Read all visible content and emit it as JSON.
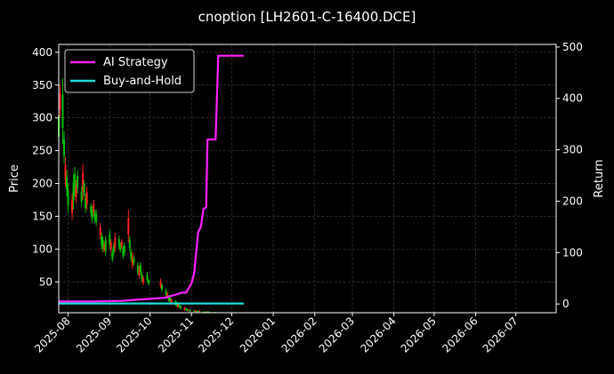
{
  "chart_data": {
    "type": "line",
    "title": "cnoption [LH2601-C-16400.DCE]",
    "ylabel_left": "Price",
    "ylabel_right": "Return",
    "x_ticks": [
      "2025-08",
      "2025-09",
      "2025-10",
      "2025-11",
      "2025-12",
      "2026-01",
      "2026-02",
      "2026-03",
      "2026-04",
      "2026-05",
      "2026-06",
      "2026-07"
    ],
    "y_left_ticks": [
      50,
      100,
      150,
      200,
      250,
      300,
      350,
      400
    ],
    "y_right_ticks": [
      0,
      100,
      200,
      300,
      400,
      500
    ],
    "y_left_lim": [
      3,
      412
    ],
    "y_right_lim": [
      -17,
      505
    ],
    "x_range": [
      "2025-07-25",
      "2026-07-31"
    ],
    "grid": true,
    "legend_position": "top-left",
    "colors": {
      "up": "#00c000",
      "down": "#ff2020",
      "strategy": "#ff22ff",
      "buyhold": "#22dddd",
      "background": "#000000",
      "text": "#ffffff",
      "grid": "#444444"
    },
    "series": [
      {
        "name": "AI Strategy",
        "axis": "right",
        "points": [
          [
            "2025-07-25",
            5
          ],
          [
            "2025-08-20",
            5
          ],
          [
            "2025-09-10",
            6
          ],
          [
            "2025-09-20",
            8
          ],
          [
            "2025-10-01",
            10
          ],
          [
            "2025-10-12",
            12
          ],
          [
            "2025-10-20",
            18
          ],
          [
            "2025-10-25",
            22
          ],
          [
            "2025-10-28",
            22
          ],
          [
            "2025-11-01",
            40
          ],
          [
            "2025-11-03",
            60
          ],
          [
            "2025-11-06",
            140
          ],
          [
            "2025-11-08",
            150
          ],
          [
            "2025-11-10",
            185
          ],
          [
            "2025-11-12",
            188
          ],
          [
            "2025-11-13",
            320
          ],
          [
            "2025-11-19",
            320
          ],
          [
            "2025-11-21",
            483
          ],
          [
            "2025-12-10",
            483
          ]
        ]
      },
      {
        "name": "Buy-and-Hold",
        "axis": "right",
        "points": [
          [
            "2025-07-25",
            1
          ],
          [
            "2025-12-10",
            1
          ]
        ]
      }
    ],
    "candles": [
      [
        "2025-07-25",
        255,
        320
      ],
      [
        "2025-07-26",
        300,
        350
      ],
      [
        "2025-07-28",
        260,
        360
      ],
      [
        "2025-07-29",
        230,
        280
      ],
      [
        "2025-07-30",
        195,
        240
      ],
      [
        "2025-07-31",
        180,
        220
      ],
      [
        "2025-08-01",
        155,
        200
      ],
      [
        "2025-08-04",
        145,
        185
      ],
      [
        "2025-08-05",
        160,
        215
      ],
      [
        "2025-08-06",
        180,
        225
      ],
      [
        "2025-08-07",
        170,
        205
      ],
      [
        "2025-08-08",
        185,
        220
      ],
      [
        "2025-08-11",
        165,
        195
      ],
      [
        "2025-08-12",
        175,
        230
      ],
      [
        "2025-08-13",
        180,
        205
      ],
      [
        "2025-08-14",
        155,
        185
      ],
      [
        "2025-08-15",
        160,
        195
      ],
      [
        "2025-08-18",
        150,
        170
      ],
      [
        "2025-08-19",
        140,
        165
      ],
      [
        "2025-08-20",
        150,
        175
      ],
      [
        "2025-08-21",
        140,
        160
      ],
      [
        "2025-08-22",
        135,
        160
      ],
      [
        "2025-08-25",
        115,
        140
      ],
      [
        "2025-08-26",
        100,
        125
      ],
      [
        "2025-08-27",
        95,
        120
      ],
      [
        "2025-08-28",
        95,
        110
      ],
      [
        "2025-08-29",
        90,
        120
      ],
      [
        "2025-09-01",
        100,
        130
      ],
      [
        "2025-09-02",
        95,
        115
      ],
      [
        "2025-09-03",
        80,
        100
      ],
      [
        "2025-09-04",
        90,
        110
      ],
      [
        "2025-09-05",
        95,
        125
      ],
      [
        "2025-09-08",
        100,
        120
      ],
      [
        "2025-09-09",
        95,
        110
      ],
      [
        "2025-09-10",
        100,
        115
      ],
      [
        "2025-09-11",
        85,
        105
      ],
      [
        "2025-09-12",
        90,
        110
      ],
      [
        "2025-09-15",
        110,
        160
      ],
      [
        "2025-09-16",
        95,
        120
      ],
      [
        "2025-09-17",
        80,
        100
      ],
      [
        "2025-09-18",
        70,
        95
      ],
      [
        "2025-09-19",
        75,
        90
      ],
      [
        "2025-09-22",
        60,
        80
      ],
      [
        "2025-09-23",
        55,
        75
      ],
      [
        "2025-09-24",
        60,
        80
      ],
      [
        "2025-09-25",
        50,
        65
      ],
      [
        "2025-09-26",
        45,
        60
      ],
      [
        "2025-09-29",
        50,
        65
      ],
      [
        "2025-09-30",
        45,
        55
      ],
      [
        "2025-10-09",
        40,
        55
      ],
      [
        "2025-10-10",
        35,
        48
      ],
      [
        "2025-10-13",
        28,
        40
      ],
      [
        "2025-10-14",
        25,
        35
      ],
      [
        "2025-10-15",
        20,
        30
      ],
      [
        "2025-10-16",
        18,
        28
      ],
      [
        "2025-10-17",
        15,
        25
      ],
      [
        "2025-10-20",
        14,
        22
      ],
      [
        "2025-10-21",
        12,
        20
      ],
      [
        "2025-10-22",
        10,
        18
      ],
      [
        "2025-10-23",
        10,
        16
      ],
      [
        "2025-10-24",
        8,
        14
      ],
      [
        "2025-10-27",
        6,
        12
      ],
      [
        "2025-10-28",
        6,
        10
      ],
      [
        "2025-10-29",
        5,
        9
      ],
      [
        "2025-10-30",
        5,
        8
      ],
      [
        "2025-10-31",
        4,
        8
      ],
      [
        "2025-11-03",
        4,
        7
      ],
      [
        "2025-11-04",
        4,
        7
      ],
      [
        "2025-11-05",
        4,
        6
      ],
      [
        "2025-11-06",
        4,
        6
      ],
      [
        "2025-11-07",
        4,
        6
      ],
      [
        "2025-11-10",
        4,
        5
      ],
      [
        "2025-11-11",
        4,
        5
      ],
      [
        "2025-11-12",
        4,
        5
      ],
      [
        "2025-11-13",
        4,
        5
      ],
      [
        "2025-11-14",
        3,
        5
      ],
      [
        "2025-11-17",
        3,
        4
      ],
      [
        "2025-11-18",
        3,
        4
      ],
      [
        "2025-11-19",
        3,
        4
      ],
      [
        "2025-11-20",
        3,
        4
      ]
    ]
  }
}
